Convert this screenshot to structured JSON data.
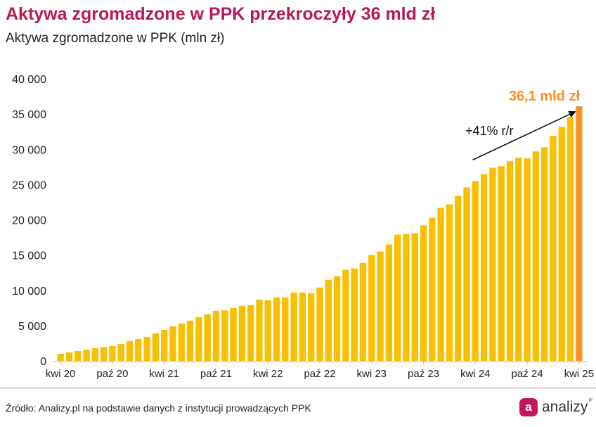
{
  "title": "Aktywa zgromadzone w PPK przekroczyły 36 mld zł",
  "subtitle": "Aktywa zgromadzone w PPK (mln zł)",
  "source": "Źródło: Analizy.pl na podstawie danych z instytucji prowadzących PPK",
  "logo": {
    "badge": "a",
    "text": "analizy",
    "suffix": "pl"
  },
  "colors": {
    "title": "#b5195b",
    "bar": "#f9c000",
    "highlight": "#f7931e",
    "brand": "#c2185b"
  },
  "chart_data": {
    "type": "bar",
    "ylim": [
      0,
      40000
    ],
    "yticks": [
      0,
      5000,
      10000,
      15000,
      20000,
      25000,
      30000,
      35000,
      40000
    ],
    "ytick_labels": [
      "0",
      "5 000",
      "10 000",
      "15 000",
      "20 000",
      "25 000",
      "30 000",
      "35 000",
      "40 000"
    ],
    "xtick_labels": [
      {
        "index": 0,
        "label": "kwi 20"
      },
      {
        "index": 6,
        "label": "paź 20"
      },
      {
        "index": 12,
        "label": "kwi 21"
      },
      {
        "index": 18,
        "label": "paź 21"
      },
      {
        "index": 24,
        "label": "kwi 22"
      },
      {
        "index": 30,
        "label": "paź 22"
      },
      {
        "index": 36,
        "label": "kwi 23"
      },
      {
        "index": 42,
        "label": "paź 23"
      },
      {
        "index": 48,
        "label": "kwi 24"
      },
      {
        "index": 54,
        "label": "paź 24"
      },
      {
        "index": 60,
        "label": "kwi 25"
      }
    ],
    "values": [
      1000,
      1200,
      1400,
      1600,
      1800,
      1950,
      2100,
      2400,
      2800,
      3100,
      3400,
      3900,
      4400,
      4900,
      5300,
      5700,
      6200,
      6600,
      7100,
      7150,
      7500,
      7800,
      7900,
      8700,
      8600,
      9000,
      9000,
      9700,
      9700,
      9600,
      10400,
      11500,
      12000,
      12900,
      13100,
      13900,
      15000,
      15500,
      16500,
      17900,
      18000,
      18100,
      19200,
      20300,
      21700,
      22200,
      23400,
      24600,
      25500,
      26500,
      27400,
      27600,
      28300,
      28800,
      28700,
      29700,
      30300,
      31900,
      33200,
      34600,
      36100
    ],
    "highlight_index": 60,
    "highlight_label": "36,1 mld zł",
    "annotation": "+41% r/r",
    "arrow_from_index": 48,
    "arrow_from_value": 28500,
    "arrow_to_index": 60,
    "arrow_to_value": 35300
  }
}
